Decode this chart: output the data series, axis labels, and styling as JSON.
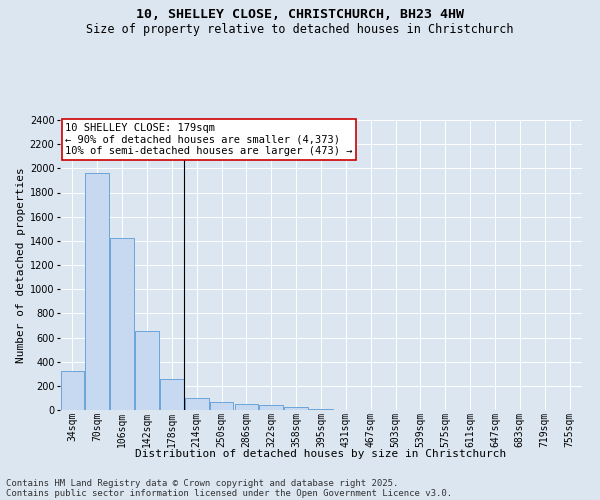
{
  "title_line1": "10, SHELLEY CLOSE, CHRISTCHURCH, BH23 4HW",
  "title_line2": "Size of property relative to detached houses in Christchurch",
  "xlabel": "Distribution of detached houses by size in Christchurch",
  "ylabel": "Number of detached properties",
  "categories": [
    "34sqm",
    "70sqm",
    "106sqm",
    "142sqm",
    "178sqm",
    "214sqm",
    "250sqm",
    "286sqm",
    "322sqm",
    "358sqm",
    "395sqm",
    "431sqm",
    "467sqm",
    "503sqm",
    "539sqm",
    "575sqm",
    "611sqm",
    "647sqm",
    "683sqm",
    "719sqm",
    "755sqm"
  ],
  "values": [
    320,
    1960,
    1420,
    650,
    260,
    100,
    70,
    50,
    40,
    25,
    5,
    0,
    0,
    0,
    0,
    0,
    0,
    0,
    0,
    0,
    0
  ],
  "bar_color": "#c6d9f0",
  "bar_edge_color": "#5b9bd5",
  "vline_x": 4.5,
  "annotation_line1": "10 SHELLEY CLOSE: 179sqm",
  "annotation_line2": "← 90% of detached houses are smaller (4,373)",
  "annotation_line3": "10% of semi-detached houses are larger (473) →",
  "annotation_box_color": "#ffffff",
  "annotation_box_edge": "#cc0000",
  "ylim": [
    0,
    2400
  ],
  "yticks": [
    0,
    200,
    400,
    600,
    800,
    1000,
    1200,
    1400,
    1600,
    1800,
    2000,
    2200,
    2400
  ],
  "footer_line1": "Contains HM Land Registry data © Crown copyright and database right 2025.",
  "footer_line2": "Contains public sector information licensed under the Open Government Licence v3.0.",
  "bg_color": "#dce6f1",
  "plot_bg_color": "#dce6f1",
  "grid_color": "#ffffff",
  "title_fontsize": 9.5,
  "subtitle_fontsize": 8.5,
  "axis_label_fontsize": 8,
  "tick_fontsize": 7,
  "footer_fontsize": 6.5,
  "annotation_fontsize": 7.5
}
